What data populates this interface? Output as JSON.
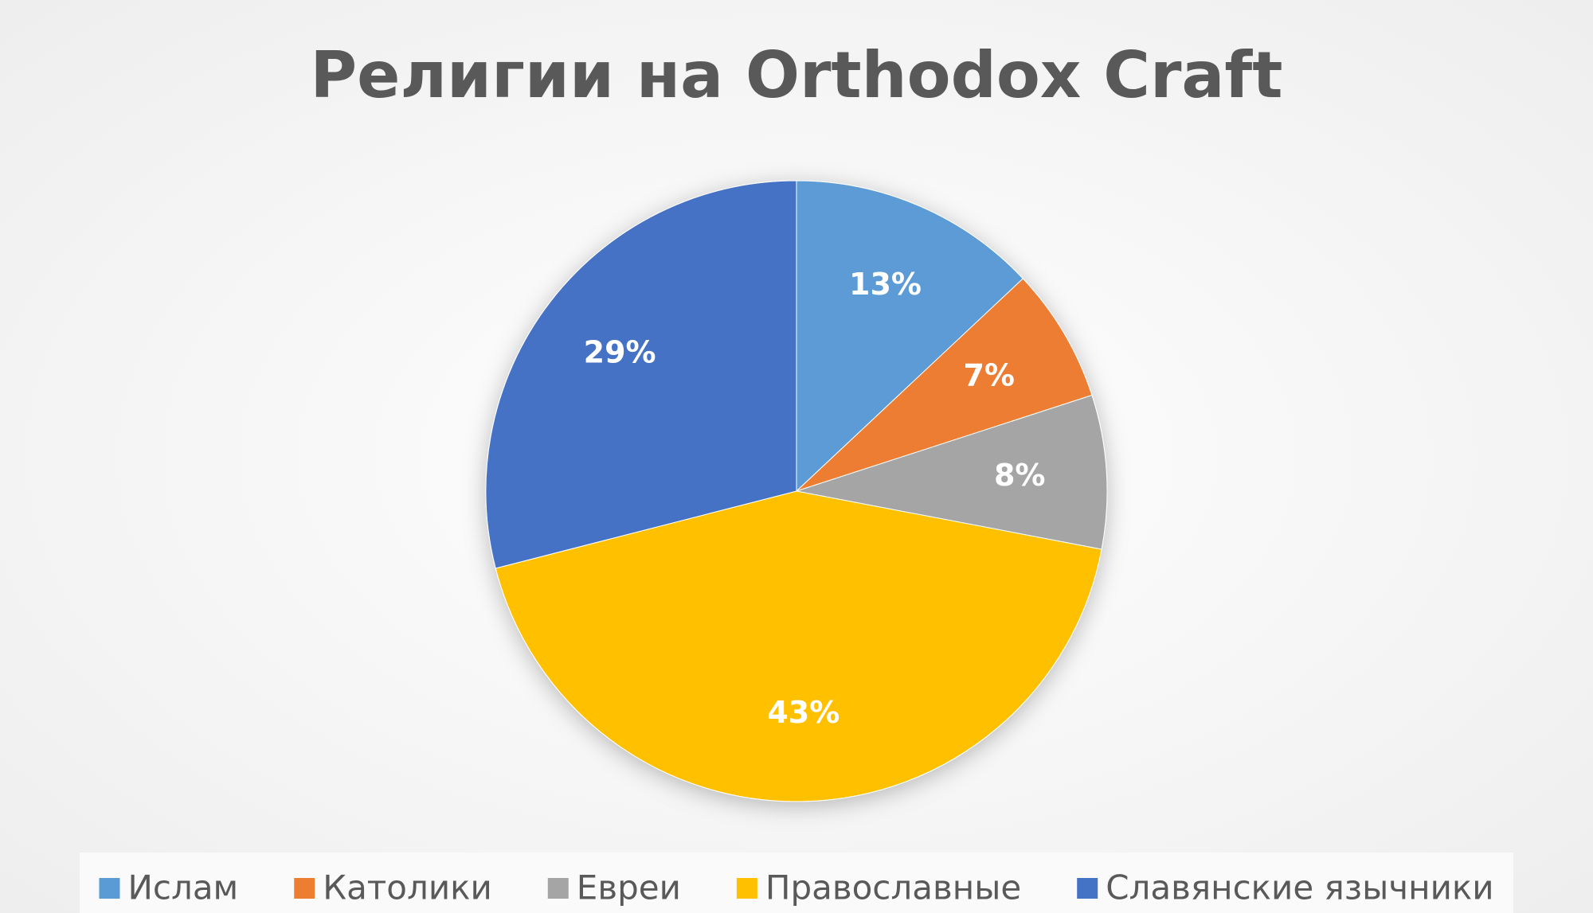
{
  "chart_data": {
    "type": "pie",
    "title": "Религии на Orthodox Craft",
    "categories": [
      "Ислам",
      "Католики",
      "Евреи",
      "Православные",
      "Славянские язычники"
    ],
    "values": [
      13,
      7,
      8,
      43,
      29
    ],
    "value_labels": [
      "13%",
      "7%",
      "8%",
      "43%",
      "29%"
    ],
    "colors": [
      "#5b9bd5",
      "#ed7d31",
      "#a5a5a5",
      "#ffc000",
      "#4472c4"
    ],
    "legend": "bottom"
  }
}
